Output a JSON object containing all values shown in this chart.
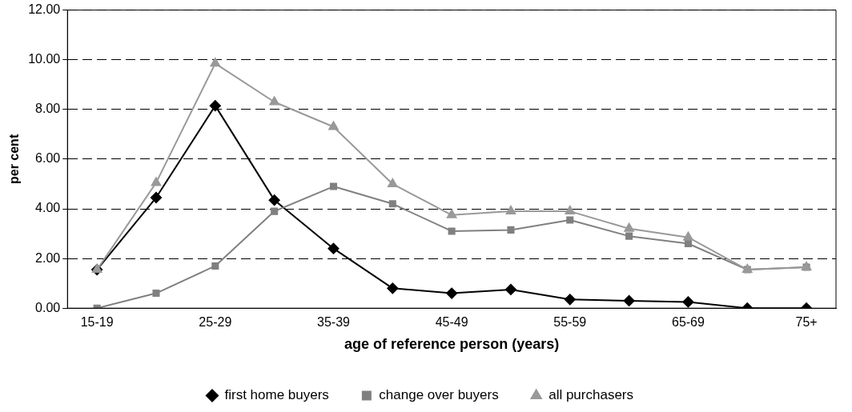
{
  "chart_data": {
    "type": "line",
    "xlabel": "age of reference person (years)",
    "ylabel": "per cent",
    "categories": [
      "15-19",
      null,
      "25-29",
      null,
      "35-39",
      null,
      "45-49",
      null,
      "55-59",
      null,
      "65-69",
      null,
      "75+"
    ],
    "series": [
      {
        "name": "first home buyers",
        "color": "#000000",
        "marker": "diamond",
        "values": [
          1.55,
          4.45,
          8.15,
          4.35,
          2.4,
          0.8,
          0.6,
          0.75,
          0.35,
          0.3,
          0.25,
          0.0,
          0.0
        ]
      },
      {
        "name": "change over buyers",
        "color": "#808080",
        "marker": "square",
        "values": [
          0.0,
          0.6,
          1.7,
          3.9,
          4.9,
          4.2,
          3.1,
          3.15,
          3.55,
          2.9,
          2.6,
          1.55,
          1.65
        ]
      },
      {
        "name": "all purchasers",
        "color": "#999999",
        "marker": "triangle",
        "values": [
          1.55,
          5.05,
          9.85,
          8.3,
          7.3,
          5.0,
          3.75,
          3.9,
          3.9,
          3.2,
          2.85,
          1.55,
          1.65
        ]
      }
    ],
    "ylim": [
      0,
      12
    ],
    "yticks": [
      {
        "value": 0,
        "label": "0.00"
      },
      {
        "value": 2,
        "label": "2.00"
      },
      {
        "value": 4,
        "label": "4.00"
      },
      {
        "value": 6,
        "label": "6.00"
      },
      {
        "value": 8,
        "label": "8.00"
      },
      {
        "value": 10,
        "label": "10.00"
      },
      {
        "value": 12,
        "label": "12.00"
      }
    ],
    "grid": "y",
    "legend": "bottom",
    "line_style": "solid"
  }
}
